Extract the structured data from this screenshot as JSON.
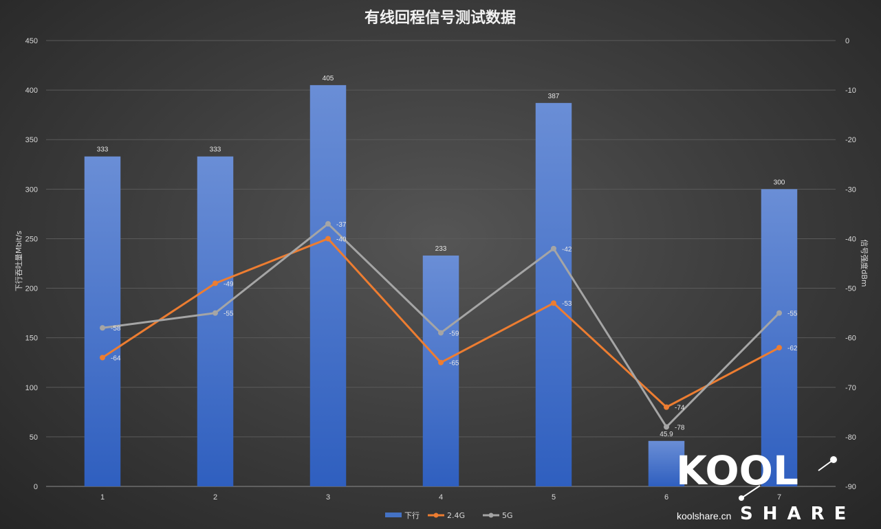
{
  "chart_data": {
    "type": "bar",
    "title": "有线回程信号测试数据",
    "categories": [
      "1",
      "2",
      "3",
      "4",
      "5",
      "6",
      "7"
    ],
    "y_left": {
      "label": "下行吞吐量Mbit/s",
      "min": 0,
      "max": 450,
      "step": 50,
      "ticks": [
        "0",
        "50",
        "100",
        "150",
        "200",
        "250",
        "300",
        "350",
        "400",
        "450"
      ]
    },
    "y_right": {
      "label": "信号强度dBm",
      "min": -90,
      "max": 0,
      "step": 10,
      "ticks": [
        "-90",
        "-80",
        "-70",
        "-60",
        "-50",
        "-40",
        "-30",
        "-20",
        "-10",
        "0"
      ]
    },
    "grid": true,
    "legend_position": "bottom",
    "series": [
      {
        "name": "下行",
        "type": "bar",
        "axis": "left",
        "color": "#4472c4",
        "values": [
          333,
          333,
          405,
          233,
          387,
          45.9,
          300
        ],
        "labels": [
          "333",
          "333",
          "405",
          "233",
          "387",
          "45.9",
          "300"
        ]
      },
      {
        "name": "2.4G",
        "type": "line",
        "axis": "right",
        "color": "#ed7d31",
        "values": [
          -64,
          -49,
          -40,
          -65,
          -53,
          -74,
          -62
        ],
        "labels": [
          "-64",
          "-49",
          "-40",
          "-65",
          "-53",
          "-74",
          "-62"
        ]
      },
      {
        "name": "5G",
        "type": "line",
        "axis": "right",
        "color": "#a5a5a5",
        "values": [
          -58,
          -55,
          -37,
          -59,
          -42,
          -78,
          -55
        ],
        "labels": [
          "-58",
          "-55",
          "-37",
          "-59",
          "-42",
          "-78",
          "-55"
        ]
      }
    ]
  },
  "watermark": {
    "logo_text": "KOOL",
    "share_text": "SHARE",
    "site": "koolshare.cn"
  }
}
